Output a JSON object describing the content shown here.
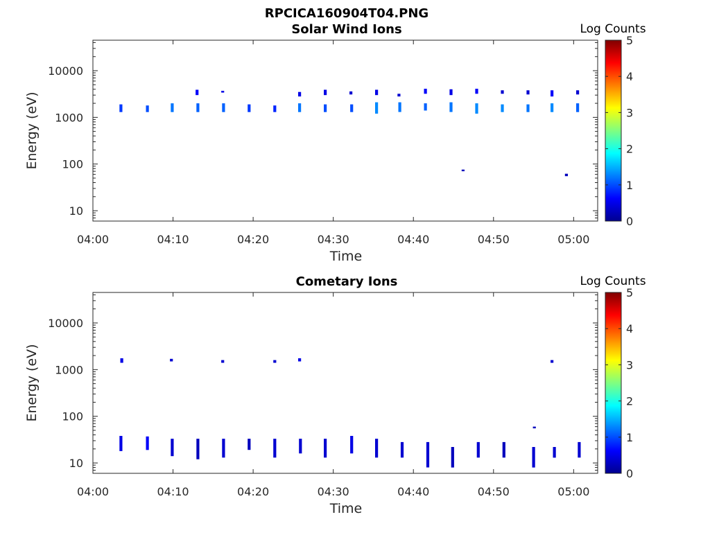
{
  "figure_title": "RPCICA160904T04.PNG",
  "colorbar_label": "Log Counts",
  "colorbar_ticks": [
    "0",
    "1",
    "2",
    "3",
    "4",
    "5"
  ],
  "x_tick_labels": [
    "04:00",
    "04:10",
    "04:20",
    "04:30",
    "04:40",
    "04:50",
    "05:00"
  ],
  "y_tick_labels": [
    "10",
    "100",
    "1000",
    "10000"
  ],
  "x_label": "Time",
  "y_label": "Energy (eV)",
  "chart_data": [
    {
      "type": "heatmap",
      "title": "Solar Wind Ions",
      "xlabel": "Time",
      "ylabel": "Energy (eV)",
      "xlim": [
        "04:00",
        "05:03"
      ],
      "ylim": [
        6,
        45000
      ],
      "y_scale": "log",
      "colorbar": {
        "label": "Log Counts",
        "range": [
          0,
          5
        ],
        "colormap": "jet"
      },
      "x_ticks": [
        "04:00",
        "04:10",
        "04:20",
        "04:30",
        "04:40",
        "04:50",
        "05:00"
      ],
      "y_ticks": [
        10,
        100,
        1000,
        10000
      ],
      "grid": false,
      "cells": [
        {
          "t": 3.5,
          "e": [
            1300,
            1900
          ],
          "v": 0.9
        },
        {
          "t": 6.8,
          "e": [
            1300,
            1800
          ],
          "v": 1.0
        },
        {
          "t": 9.9,
          "e": [
            1300,
            2000
          ],
          "v": 1.2
        },
        {
          "t": 13.0,
          "e": [
            3000,
            3900
          ],
          "v": 0.6
        },
        {
          "t": 13.1,
          "e": [
            1300,
            2000
          ],
          "v": 1.1
        },
        {
          "t": 16.2,
          "e": [
            3400,
            3700
          ],
          "v": 0.5
        },
        {
          "t": 16.3,
          "e": [
            1300,
            2000
          ],
          "v": 1.1
        },
        {
          "t": 19.5,
          "e": [
            1300,
            1900
          ],
          "v": 0.9
        },
        {
          "t": 22.7,
          "e": [
            1300,
            1800
          ],
          "v": 0.8
        },
        {
          "t": 25.8,
          "e": [
            2800,
            3500
          ],
          "v": 0.5
        },
        {
          "t": 25.8,
          "e": [
            1300,
            2000
          ],
          "v": 1.2
        },
        {
          "t": 29.0,
          "e": [
            3000,
            3900
          ],
          "v": 0.5
        },
        {
          "t": 29.0,
          "e": [
            1300,
            1900
          ],
          "v": 1.0
        },
        {
          "t": 32.2,
          "e": [
            3100,
            3600
          ],
          "v": 0.4
        },
        {
          "t": 32.3,
          "e": [
            1300,
            1900
          ],
          "v": 1.0
        },
        {
          "t": 35.4,
          "e": [
            3000,
            3900
          ],
          "v": 0.5
        },
        {
          "t": 35.4,
          "e": [
            1200,
            2100
          ],
          "v": 1.3
        },
        {
          "t": 38.2,
          "e": [
            2800,
            3200
          ],
          "v": 0.4
        },
        {
          "t": 38.3,
          "e": [
            1300,
            2100
          ],
          "v": 1.2
        },
        {
          "t": 41.5,
          "e": [
            3200,
            4100
          ],
          "v": 0.6
        },
        {
          "t": 41.5,
          "e": [
            1400,
            2000
          ],
          "v": 1.1
        },
        {
          "t": 44.7,
          "e": [
            3000,
            4000
          ],
          "v": 0.5
        },
        {
          "t": 44.7,
          "e": [
            1300,
            2100
          ],
          "v": 1.2
        },
        {
          "t": 46.2,
          "e": [
            70,
            76
          ],
          "v": 0.3
        },
        {
          "t": 47.9,
          "e": [
            3200,
            4100
          ],
          "v": 0.6
        },
        {
          "t": 47.9,
          "e": [
            1200,
            2000
          ],
          "v": 1.3
        },
        {
          "t": 51.1,
          "e": [
            3200,
            3800
          ],
          "v": 0.4
        },
        {
          "t": 51.1,
          "e": [
            1300,
            1900
          ],
          "v": 1.3
        },
        {
          "t": 54.3,
          "e": [
            3100,
            3800
          ],
          "v": 0.4
        },
        {
          "t": 54.3,
          "e": [
            1300,
            1900
          ],
          "v": 1.2
        },
        {
          "t": 57.3,
          "e": [
            2800,
            3800
          ],
          "v": 0.6
        },
        {
          "t": 57.3,
          "e": [
            1300,
            2000
          ],
          "v": 1.3
        },
        {
          "t": 59.1,
          "e": [
            55,
            62
          ],
          "v": 0.3
        },
        {
          "t": 60.5,
          "e": [
            3100,
            3800
          ],
          "v": 0.4
        },
        {
          "t": 60.5,
          "e": [
            1300,
            2000
          ],
          "v": 1.1
        }
      ]
    },
    {
      "type": "heatmap",
      "title": "Cometary Ions",
      "xlabel": "Time",
      "ylabel": "Energy (eV)",
      "xlim": [
        "04:00",
        "05:03"
      ],
      "ylim": [
        6,
        45000
      ],
      "y_scale": "log",
      "colorbar": {
        "label": "Log Counts",
        "range": [
          0,
          5
        ],
        "colormap": "jet"
      },
      "x_ticks": [
        "04:00",
        "04:10",
        "04:20",
        "04:30",
        "04:40",
        "04:50",
        "05:00"
      ],
      "y_ticks": [
        10,
        100,
        1000,
        10000
      ],
      "grid": false,
      "cells": [
        {
          "t": 3.6,
          "e": [
            1400,
            1750
          ],
          "v": 0.5
        },
        {
          "t": 3.5,
          "e": [
            18,
            38
          ],
          "v": 0.5
        },
        {
          "t": 6.8,
          "e": [
            19,
            37
          ],
          "v": 0.6
        },
        {
          "t": 9.8,
          "e": [
            1500,
            1700
          ],
          "v": 0.4
        },
        {
          "t": 9.9,
          "e": [
            14,
            33
          ],
          "v": 0.4
        },
        {
          "t": 13.1,
          "e": [
            12,
            33
          ],
          "v": 0.3
        },
        {
          "t": 16.2,
          "e": [
            1400,
            1600
          ],
          "v": 0.4
        },
        {
          "t": 16.3,
          "e": [
            13,
            33
          ],
          "v": 0.4
        },
        {
          "t": 19.5,
          "e": [
            19,
            33
          ],
          "v": 0.3
        },
        {
          "t": 22.7,
          "e": [
            1400,
            1600
          ],
          "v": 0.4
        },
        {
          "t": 22.7,
          "e": [
            13,
            33
          ],
          "v": 0.4
        },
        {
          "t": 25.8,
          "e": [
            1500,
            1750
          ],
          "v": 0.5
        },
        {
          "t": 25.9,
          "e": [
            16,
            33
          ],
          "v": 0.4
        },
        {
          "t": 29.0,
          "e": [
            13,
            33
          ],
          "v": 0.4
        },
        {
          "t": 32.3,
          "e": [
            16,
            38
          ],
          "v": 0.5
        },
        {
          "t": 35.4,
          "e": [
            13,
            33
          ],
          "v": 0.4
        },
        {
          "t": 38.6,
          "e": [
            13,
            28
          ],
          "v": 0.4
        },
        {
          "t": 41.8,
          "e": [
            8,
            28
          ],
          "v": 0.4
        },
        {
          "t": 44.9,
          "e": [
            8,
            22
          ],
          "v": 0.3
        },
        {
          "t": 48.1,
          "e": [
            13,
            28
          ],
          "v": 0.4
        },
        {
          "t": 51.3,
          "e": [
            13,
            28
          ],
          "v": 0.3
        },
        {
          "t": 55.1,
          "e": [
            55,
            60
          ],
          "v": 0.3
        },
        {
          "t": 55.0,
          "e": [
            8,
            22
          ],
          "v": 0.4
        },
        {
          "t": 57.3,
          "e": [
            1400,
            1600
          ],
          "v": 0.4
        },
        {
          "t": 57.6,
          "e": [
            13,
            22
          ],
          "v": 0.4
        },
        {
          "t": 60.7,
          "e": [
            13,
            28
          ],
          "v": 0.4
        }
      ]
    }
  ]
}
